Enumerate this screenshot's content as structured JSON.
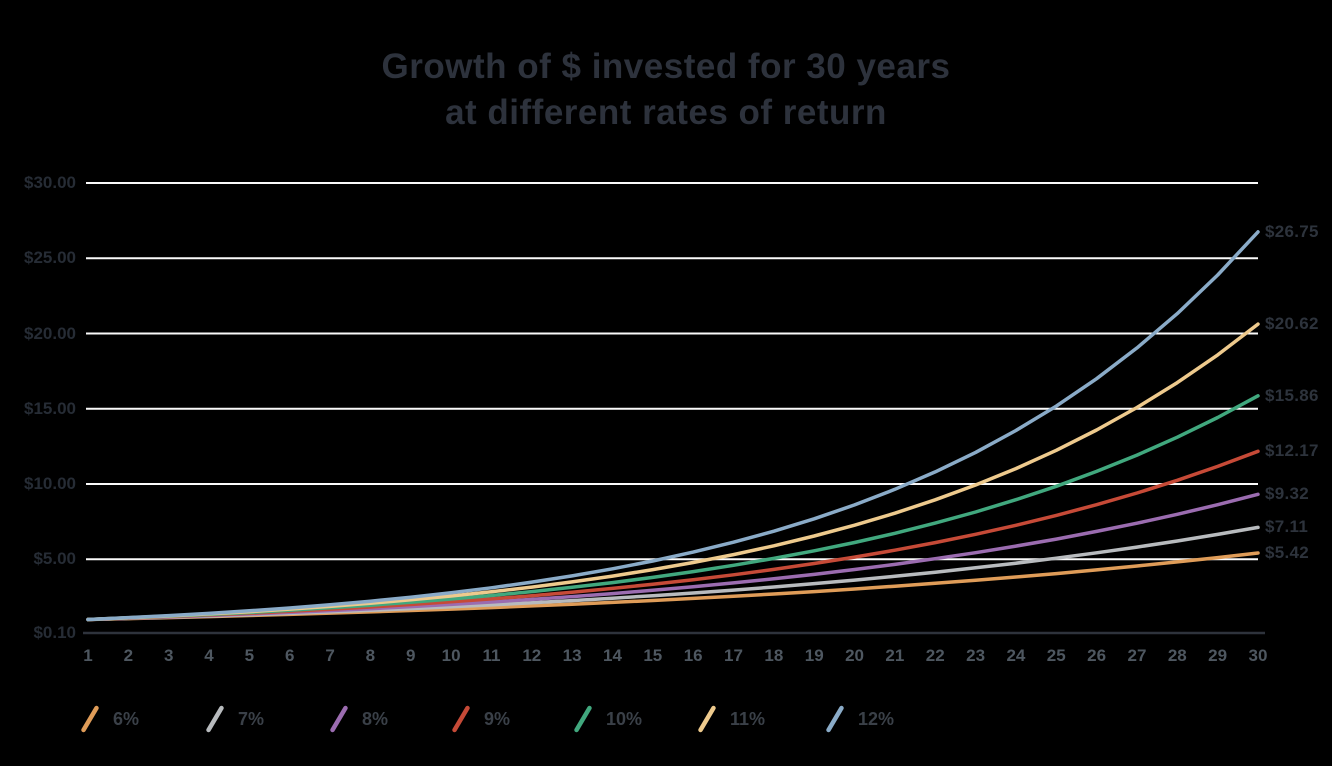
{
  "page": {
    "background_color": "#000000",
    "gridline_color": "#fafafa",
    "baseline_color": "#2e333c"
  },
  "chart_data": {
    "type": "line",
    "title": "Growth of $ invested for 30 years at different rates of return",
    "title_lines": [
      "Growth of $ invested for 30 years",
      "at different rates of return"
    ],
    "xlabel": "",
    "ylabel": "",
    "x": [
      1,
      2,
      3,
      4,
      5,
      6,
      7,
      8,
      9,
      10,
      11,
      12,
      13,
      14,
      15,
      16,
      17,
      18,
      19,
      20,
      21,
      22,
      23,
      24,
      25,
      26,
      27,
      28,
      29,
      30
    ],
    "x_tick_labels": [
      "1",
      "2",
      "3",
      "4",
      "5",
      "6",
      "7",
      "8",
      "9",
      "10",
      "11",
      "12",
      "13",
      "14",
      "15",
      "16",
      "17",
      "18",
      "19",
      "20",
      "21",
      "22",
      "23",
      "24",
      "25",
      "26",
      "27",
      "28",
      "29",
      "30"
    ],
    "y_ticks": [
      {
        "label": "$30.00",
        "value": 30.0
      },
      {
        "label": "$25.00",
        "value": 25.0
      },
      {
        "label": "$20.00",
        "value": 20.0
      },
      {
        "label": "$15.00",
        "value": 15.0
      },
      {
        "label": "$10.00",
        "value": 10.0
      },
      {
        "label": "$5.00",
        "value": 5.0
      },
      {
        "label": "$0.10",
        "value": 0.1
      }
    ],
    "ylim": [
      0.1,
      30.0
    ],
    "grid": "horizontal",
    "legend_position": "bottom",
    "series": [
      {
        "name": "6%",
        "color": "#df9c58",
        "end_label": "$5.42",
        "values": [
          1,
          1.06,
          1.124,
          1.191,
          1.262,
          1.338,
          1.419,
          1.504,
          1.594,
          1.689,
          1.791,
          1.898,
          2.012,
          2.133,
          2.261,
          2.397,
          2.54,
          2.693,
          2.854,
          3.026,
          3.207,
          3.4,
          3.604,
          3.82,
          4.049,
          4.292,
          4.549,
          4.822,
          5.112,
          5.418
        ]
      },
      {
        "name": "7%",
        "color": "#b8bbbe",
        "end_label": "$7.11",
        "values": [
          1,
          1.07,
          1.145,
          1.225,
          1.311,
          1.403,
          1.501,
          1.606,
          1.718,
          1.838,
          1.967,
          2.105,
          2.252,
          2.41,
          2.579,
          2.759,
          2.952,
          3.159,
          3.38,
          3.617,
          3.87,
          4.141,
          4.43,
          4.741,
          5.072,
          5.427,
          5.807,
          6.214,
          6.649,
          7.114
        ]
      },
      {
        "name": "8%",
        "color": "#9b6cb0",
        "end_label": "$9.32",
        "values": [
          1,
          1.08,
          1.166,
          1.26,
          1.36,
          1.469,
          1.587,
          1.714,
          1.851,
          1.999,
          2.159,
          2.332,
          2.518,
          2.72,
          2.937,
          3.172,
          3.426,
          3.7,
          3.996,
          4.316,
          4.661,
          5.034,
          5.437,
          5.871,
          6.341,
          6.848,
          7.396,
          7.988,
          8.627,
          9.317
        ]
      },
      {
        "name": "9%",
        "color": "#c64a37",
        "end_label": "$12.17",
        "values": [
          1,
          1.09,
          1.188,
          1.295,
          1.412,
          1.539,
          1.677,
          1.828,
          1.993,
          2.172,
          2.367,
          2.58,
          2.813,
          3.066,
          3.342,
          3.642,
          3.97,
          4.328,
          4.717,
          5.142,
          5.604,
          6.109,
          6.659,
          7.258,
          7.911,
          8.623,
          9.399,
          10.245,
          11.167,
          12.172
        ]
      },
      {
        "name": "10%",
        "color": "#41a87e",
        "end_label": "$15.86",
        "values": [
          1,
          1.1,
          1.21,
          1.331,
          1.464,
          1.611,
          1.772,
          1.949,
          2.144,
          2.358,
          2.594,
          2.853,
          3.138,
          3.452,
          3.797,
          4.177,
          4.595,
          5.054,
          5.56,
          6.116,
          6.727,
          7.4,
          8.14,
          8.954,
          9.85,
          10.835,
          11.918,
          13.11,
          14.421,
          15.863
        ]
      },
      {
        "name": "11%",
        "color": "#eeca8d",
        "end_label": "$20.62",
        "values": [
          1,
          1.11,
          1.232,
          1.368,
          1.518,
          1.685,
          1.87,
          2.076,
          2.305,
          2.558,
          2.839,
          3.152,
          3.498,
          3.883,
          4.31,
          4.785,
          5.311,
          5.895,
          6.544,
          7.263,
          8.062,
          8.949,
          9.934,
          11.026,
          12.239,
          13.585,
          15.08,
          16.739,
          18.58,
          20.624
        ]
      },
      {
        "name": "12%",
        "color": "#8aabc8",
        "end_label": "$26.75",
        "values": [
          1,
          1.12,
          1.254,
          1.405,
          1.574,
          1.762,
          1.974,
          2.211,
          2.476,
          2.773,
          3.106,
          3.479,
          3.896,
          4.363,
          4.887,
          5.474,
          6.13,
          6.866,
          7.69,
          8.613,
          9.646,
          10.804,
          12.1,
          13.552,
          15.179,
          17.0,
          19.04,
          21.325,
          23.884,
          26.75
        ]
      }
    ]
  }
}
